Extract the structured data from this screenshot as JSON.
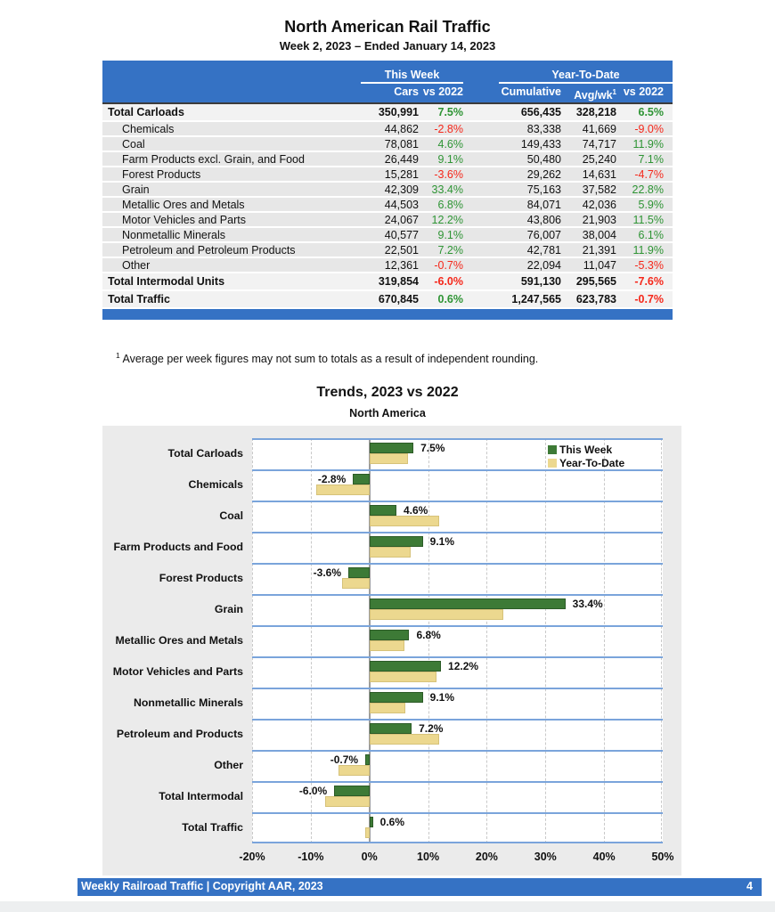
{
  "page": {
    "title": "North American Rail Traffic",
    "subtitle": "Week 2, 2023 – Ended January 14, 2023",
    "footnote_sup": "1",
    "footnote_text": "Average per week figures may not sum to totals as a result of independent rounding.",
    "footer": {
      "left": "Weekly Railroad Traffic | Copyright AAR, 2023",
      "page_number": "4"
    }
  },
  "table": {
    "group_headers": [
      {
        "label": "This Week",
        "span": 2
      },
      {
        "label": "Year-To-Date",
        "span": 3
      }
    ],
    "columns": [
      "",
      "Cars",
      "vs 2022",
      "Cumulative",
      "Avg/wk",
      "vs 2022"
    ],
    "avg_wk_sup": "1",
    "rows": [
      {
        "label": "Total Carloads",
        "total": true,
        "cars": "350,991",
        "vs_this": "7.5%",
        "cumulative": "656,435",
        "avg_wk": "328,218",
        "vs_ytd": "6.5%"
      },
      {
        "label": "Chemicals",
        "cars": "44,862",
        "vs_this": "-2.8%",
        "cumulative": "83,338",
        "avg_wk": "41,669",
        "vs_ytd": "-9.0%"
      },
      {
        "label": "Coal",
        "cars": "78,081",
        "vs_this": "4.6%",
        "cumulative": "149,433",
        "avg_wk": "74,717",
        "vs_ytd": "11.9%"
      },
      {
        "label": "Farm Products excl. Grain, and Food",
        "cars": "26,449",
        "vs_this": "9.1%",
        "cumulative": "50,480",
        "avg_wk": "25,240",
        "vs_ytd": "7.1%"
      },
      {
        "label": "Forest Products",
        "cars": "15,281",
        "vs_this": "-3.6%",
        "cumulative": "29,262",
        "avg_wk": "14,631",
        "vs_ytd": "-4.7%"
      },
      {
        "label": "Grain",
        "cars": "42,309",
        "vs_this": "33.4%",
        "cumulative": "75,163",
        "avg_wk": "37,582",
        "vs_ytd": "22.8%"
      },
      {
        "label": "Metallic Ores and Metals",
        "cars": "44,503",
        "vs_this": "6.8%",
        "cumulative": "84,071",
        "avg_wk": "42,036",
        "vs_ytd": "5.9%"
      },
      {
        "label": "Motor Vehicles and Parts",
        "cars": "24,067",
        "vs_this": "12.2%",
        "cumulative": "43,806",
        "avg_wk": "21,903",
        "vs_ytd": "11.5%"
      },
      {
        "label": "Nonmetallic Minerals",
        "cars": "40,577",
        "vs_this": "9.1%",
        "cumulative": "76,007",
        "avg_wk": "38,004",
        "vs_ytd": "6.1%"
      },
      {
        "label": "Petroleum and Petroleum Products",
        "cars": "22,501",
        "vs_this": "7.2%",
        "cumulative": "42,781",
        "avg_wk": "21,391",
        "vs_ytd": "11.9%"
      },
      {
        "label": "Other",
        "cars": "12,361",
        "vs_this": "-0.7%",
        "cumulative": "22,094",
        "avg_wk": "11,047",
        "vs_ytd": "-5.3%"
      },
      {
        "label": "Total Intermodal Units",
        "total": true,
        "cars": "319,854",
        "vs_this": "-6.0%",
        "cumulative": "591,130",
        "avg_wk": "295,565",
        "vs_ytd": "-7.6%"
      },
      {
        "label": "Total Traffic",
        "total": true,
        "cars": "670,845",
        "vs_this": "0.6%",
        "cumulative": "1,247,565",
        "avg_wk": "623,783",
        "vs_ytd": "-0.7%"
      }
    ]
  },
  "chart_data": {
    "type": "bar",
    "orientation": "horizontal",
    "title": "Trends, 2023 vs 2022",
    "subtitle": "North America",
    "categories": [
      "Total Carloads",
      "Chemicals",
      "Coal",
      "Farm Products and Food",
      "Forest Products",
      "Grain",
      "Metallic Ores and Metals",
      "Motor Vehicles and Parts",
      "Nonmetallic Minerals",
      "Petroleum and Products",
      "Other",
      "Total Intermodal",
      "Total Traffic"
    ],
    "series": [
      {
        "name": "This Week",
        "color": "#3D7A36",
        "values": [
          7.5,
          -2.8,
          4.6,
          9.1,
          -3.6,
          33.4,
          6.8,
          12.2,
          9.1,
          7.2,
          -0.7,
          -6.0,
          0.6
        ]
      },
      {
        "name": "Year-To-Date",
        "color": "#ECD88F",
        "values": [
          6.5,
          -9.0,
          11.9,
          7.1,
          -4.7,
          22.8,
          5.9,
          11.5,
          6.1,
          11.9,
          -5.3,
          -7.6,
          -0.7
        ]
      }
    ],
    "bar_labels": [
      "7.5%",
      "-2.8%",
      "4.6%",
      "9.1%",
      "-3.6%",
      "33.4%",
      "6.8%",
      "12.2%",
      "9.1%",
      "7.2%",
      "-0.7%",
      "-6.0%",
      "0.6%"
    ],
    "x_ticks": [
      "-20%",
      "-10%",
      "0%",
      "10%",
      "20%",
      "30%",
      "40%",
      "50%"
    ],
    "xlim": [
      -20,
      50
    ],
    "legend_position": "top-right",
    "gridlines": "vertical-dashed"
  },
  "colors": {
    "header_blue": "#3572C4",
    "band_blue": "#7AA4DB",
    "positive_green": "#2E9434",
    "negative_red": "#F5271A",
    "bar_green": "#3D7A36",
    "bar_tan": "#ECD88F",
    "row_gray": "#E7E7E7",
    "total_row_gray": "#F2F2F2",
    "panel_gray": "#EBEBEB"
  }
}
